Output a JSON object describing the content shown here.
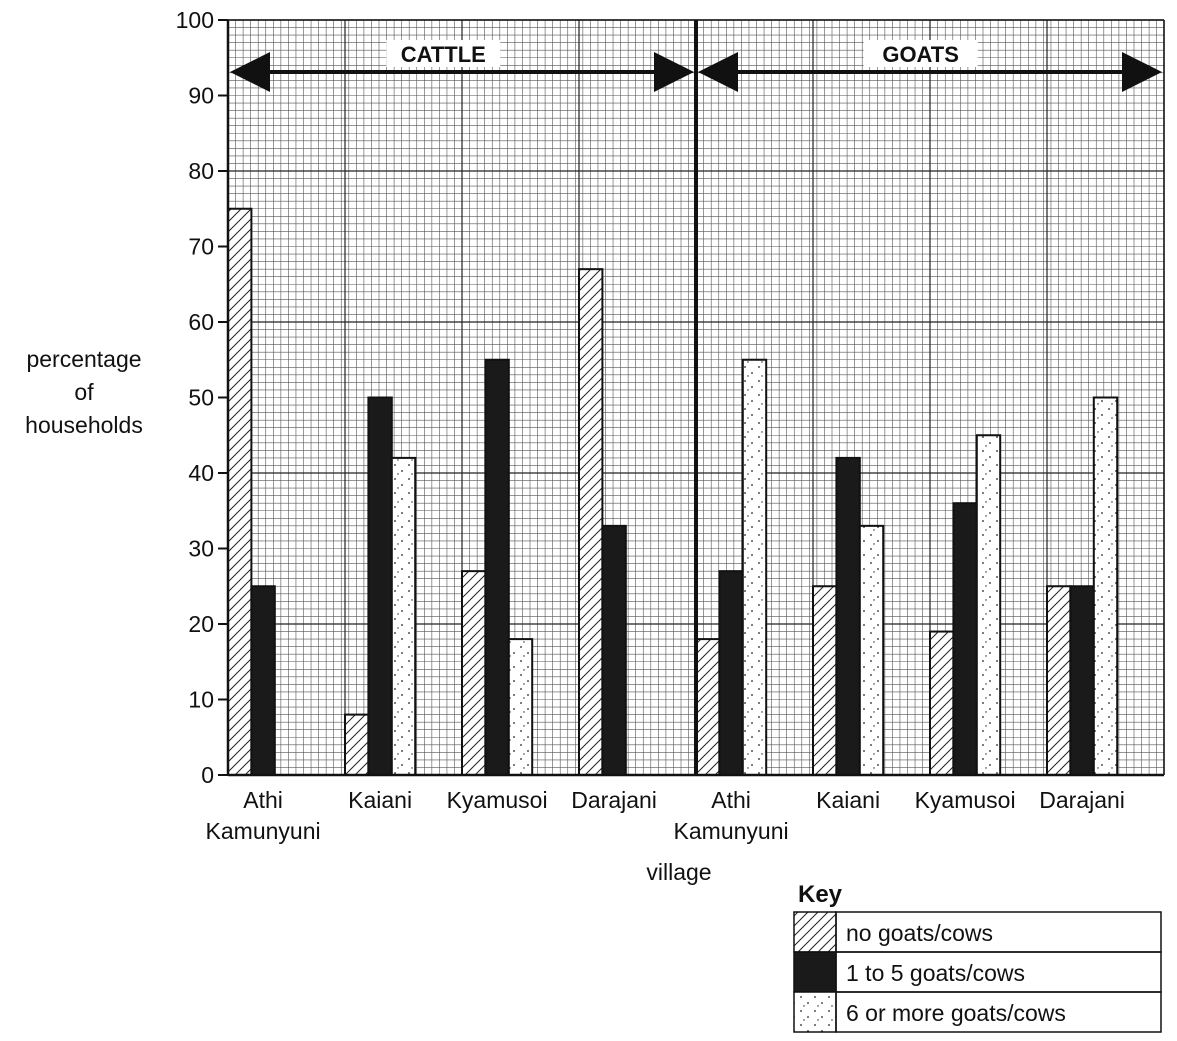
{
  "chart_data": {
    "type": "bar",
    "xlabel": "village",
    "ylabel": [
      "percentage",
      "of",
      "households"
    ],
    "ylim": [
      0,
      100
    ],
    "yticks": [
      0,
      10,
      20,
      30,
      40,
      50,
      60,
      70,
      80,
      90,
      100
    ],
    "grid": true,
    "groups": [
      {
        "name": "CATTLE",
        "categories": [
          [
            "Athi",
            "Kamunyuni"
          ],
          [
            "Kaiani"
          ],
          [
            "Kyamusoi"
          ],
          [
            "Darajani"
          ]
        ],
        "values": [
          [
            75,
            25,
            0
          ],
          [
            8,
            50,
            42
          ],
          [
            27,
            55,
            18
          ],
          [
            67,
            33,
            0
          ]
        ]
      },
      {
        "name": "GOATS",
        "categories": [
          [
            "Athi",
            "Kamunyuni"
          ],
          [
            "Kaiani"
          ],
          [
            "Kyamusoi"
          ],
          [
            "Darajani"
          ]
        ],
        "values": [
          [
            18,
            27,
            55
          ],
          [
            25,
            42,
            33
          ],
          [
            19,
            36,
            45
          ],
          [
            25,
            25,
            50
          ]
        ]
      }
    ],
    "series": [
      {
        "name": "no goats/cows",
        "pattern": "hatch"
      },
      {
        "name": "1 to 5 goats/cows",
        "pattern": "solid"
      },
      {
        "name": "6 or more goats/cows",
        "pattern": "dots"
      }
    ],
    "legend": {
      "title": "Key",
      "position": "bottom-right"
    }
  }
}
